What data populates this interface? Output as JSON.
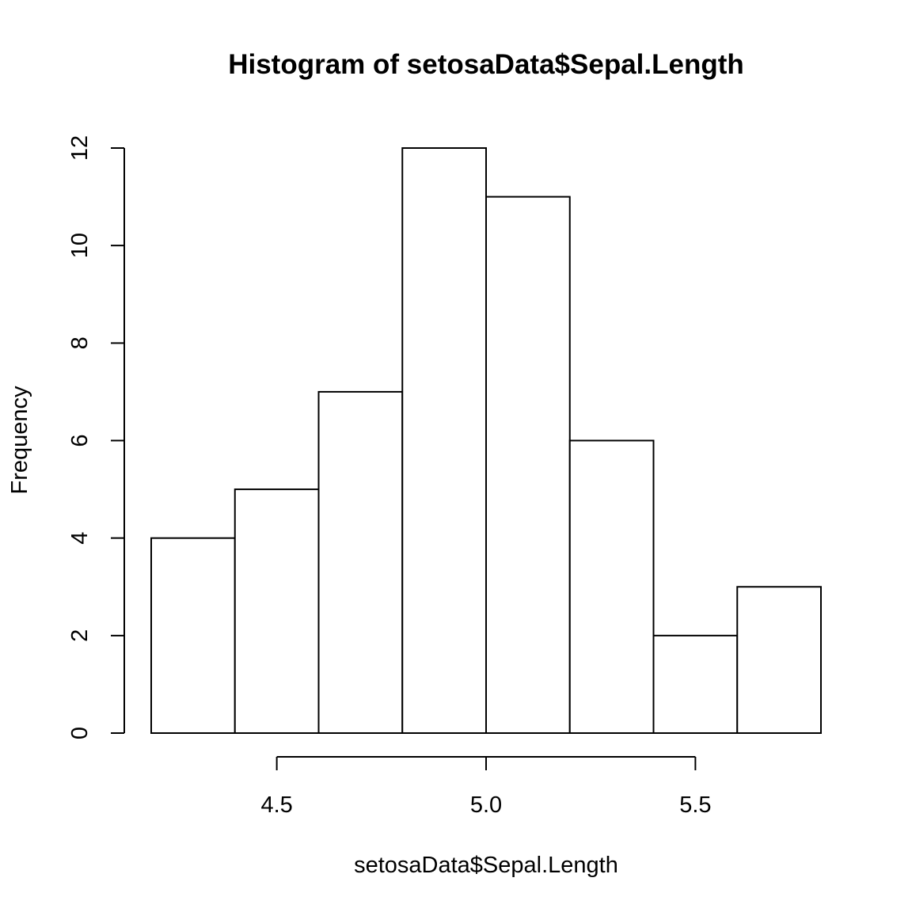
{
  "chart_data": {
    "type": "bar",
    "title": "Histogram of setosaData$Sepal.Length",
    "xlabel": "setosaData$Sepal.Length",
    "ylabel": "Frequency",
    "bin_edges": [
      4.2,
      4.4,
      4.6,
      4.8,
      5.0,
      5.2,
      5.4,
      5.6,
      5.8
    ],
    "values": [
      4,
      5,
      7,
      12,
      11,
      6,
      2,
      3
    ],
    "xlim": [
      4.2,
      5.8
    ],
    "ylim": [
      0,
      12
    ],
    "x_ticks": [
      4.5,
      5.0,
      5.5
    ],
    "x_tick_labels": [
      "4.5",
      "5.0",
      "5.5"
    ],
    "y_ticks": [
      0,
      2,
      4,
      6,
      8,
      10,
      12
    ],
    "y_tick_labels": [
      "0",
      "2",
      "4",
      "6",
      "8",
      "10",
      "12"
    ],
    "grid": false,
    "colors": {
      "bar_fill": "#ffffff",
      "bar_stroke": "#000000"
    }
  }
}
